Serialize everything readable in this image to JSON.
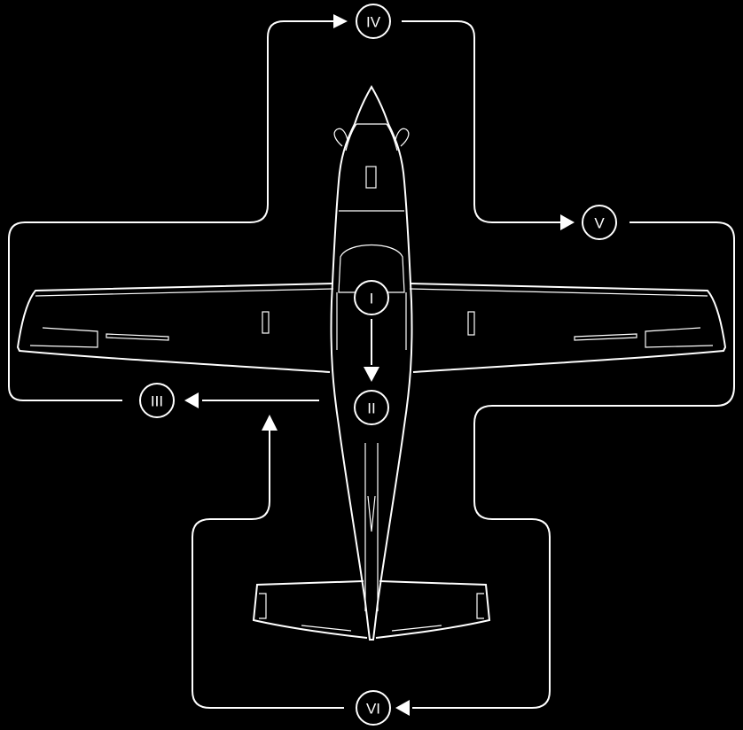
{
  "markers": {
    "i": "I",
    "ii": "II",
    "iii": "III",
    "iv": "IV",
    "v": "V",
    "vi": "VI"
  },
  "colors": {
    "background": "#000000",
    "line": "#ffffff"
  }
}
